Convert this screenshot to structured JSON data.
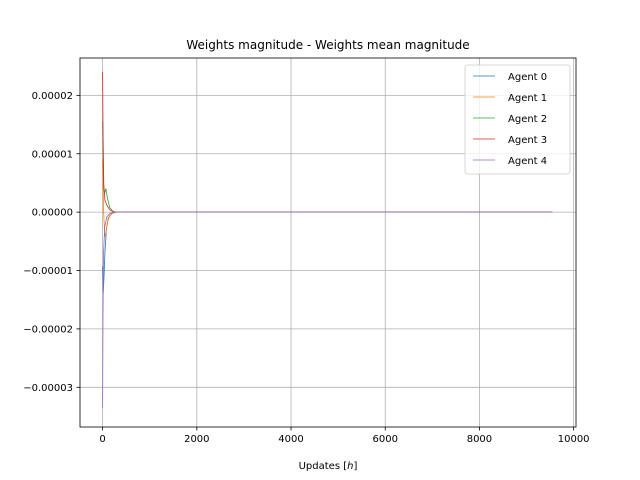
{
  "chart_data": {
    "type": "line",
    "title": "Weights magnitude - Weights mean magnitude",
    "xlabel": "Updates [h]",
    "xlabel_main": "Updates ",
    "xlabel_var": "h",
    "ylabel": "",
    "xlim": [
      -480,
      10050
    ],
    "ylim": [
      -3.68e-05,
      2.64e-05
    ],
    "x_ticks": [
      0,
      2000,
      4000,
      6000,
      8000,
      10000
    ],
    "x_tick_labels": [
      "0",
      "2000",
      "4000",
      "6000",
      "8000",
      "10000"
    ],
    "y_ticks": [
      -3e-05,
      -2e-05,
      -1e-05,
      0,
      1e-05,
      2e-05
    ],
    "y_tick_labels": [
      "−0.00003",
      "−0.00002",
      "−0.00001",
      "0.00000",
      "0.00001",
      "0.00002"
    ],
    "grid": true,
    "legend_position": "top-right",
    "series": [
      {
        "name": "Agent 0",
        "color": "#1f77b4",
        "points": [
          [
            0,
            -9.3e-06
          ],
          [
            15,
            -1.37e-05
          ],
          [
            30,
            -1.1e-05
          ],
          [
            50,
            -6.8e-06
          ],
          [
            80,
            -3e-06
          ],
          [
            120,
            -1e-06
          ],
          [
            200,
            -2e-07
          ],
          [
            300,
            0
          ],
          [
            9550,
            0
          ]
        ]
      },
      {
        "name": "Agent 1",
        "color": "#ff7f0e",
        "points": [
          [
            0,
            9e-06
          ],
          [
            20,
            5e-07
          ],
          [
            45,
            -4.2e-06
          ],
          [
            70,
            -3.5e-06
          ],
          [
            100,
            -1.8e-06
          ],
          [
            150,
            -6e-07
          ],
          [
            220,
            -1e-07
          ],
          [
            300,
            0
          ],
          [
            9550,
            0
          ]
        ]
      },
      {
        "name": "Agent 2",
        "color": "#2ca02c",
        "points": [
          [
            0,
            1.55e-05
          ],
          [
            20,
            5e-06
          ],
          [
            40,
            3.2e-06
          ],
          [
            70,
            4e-06
          ],
          [
            100,
            2.5e-06
          ],
          [
            150,
            8e-07
          ],
          [
            220,
            1e-07
          ],
          [
            300,
            0
          ],
          [
            9550,
            0
          ]
        ]
      },
      {
        "name": "Agent 3",
        "color": "#d62728",
        "points": [
          [
            0,
            2.4e-05
          ],
          [
            10,
            1.3e-05
          ],
          [
            25,
            4.5e-06
          ],
          [
            50,
            2e-06
          ],
          [
            90,
            1.2e-06
          ],
          [
            150,
            4e-07
          ],
          [
            250,
            0
          ],
          [
            9550,
            0
          ]
        ]
      },
      {
        "name": "Agent 4",
        "color": "#9467bd",
        "points": [
          [
            0,
            -3.35e-05
          ],
          [
            8,
            -1.8e-05
          ],
          [
            20,
            -7e-06
          ],
          [
            45,
            -2.5e-06
          ],
          [
            90,
            -8e-07
          ],
          [
            160,
            -2e-07
          ],
          [
            260,
            0
          ],
          [
            9550,
            0
          ]
        ]
      }
    ]
  }
}
